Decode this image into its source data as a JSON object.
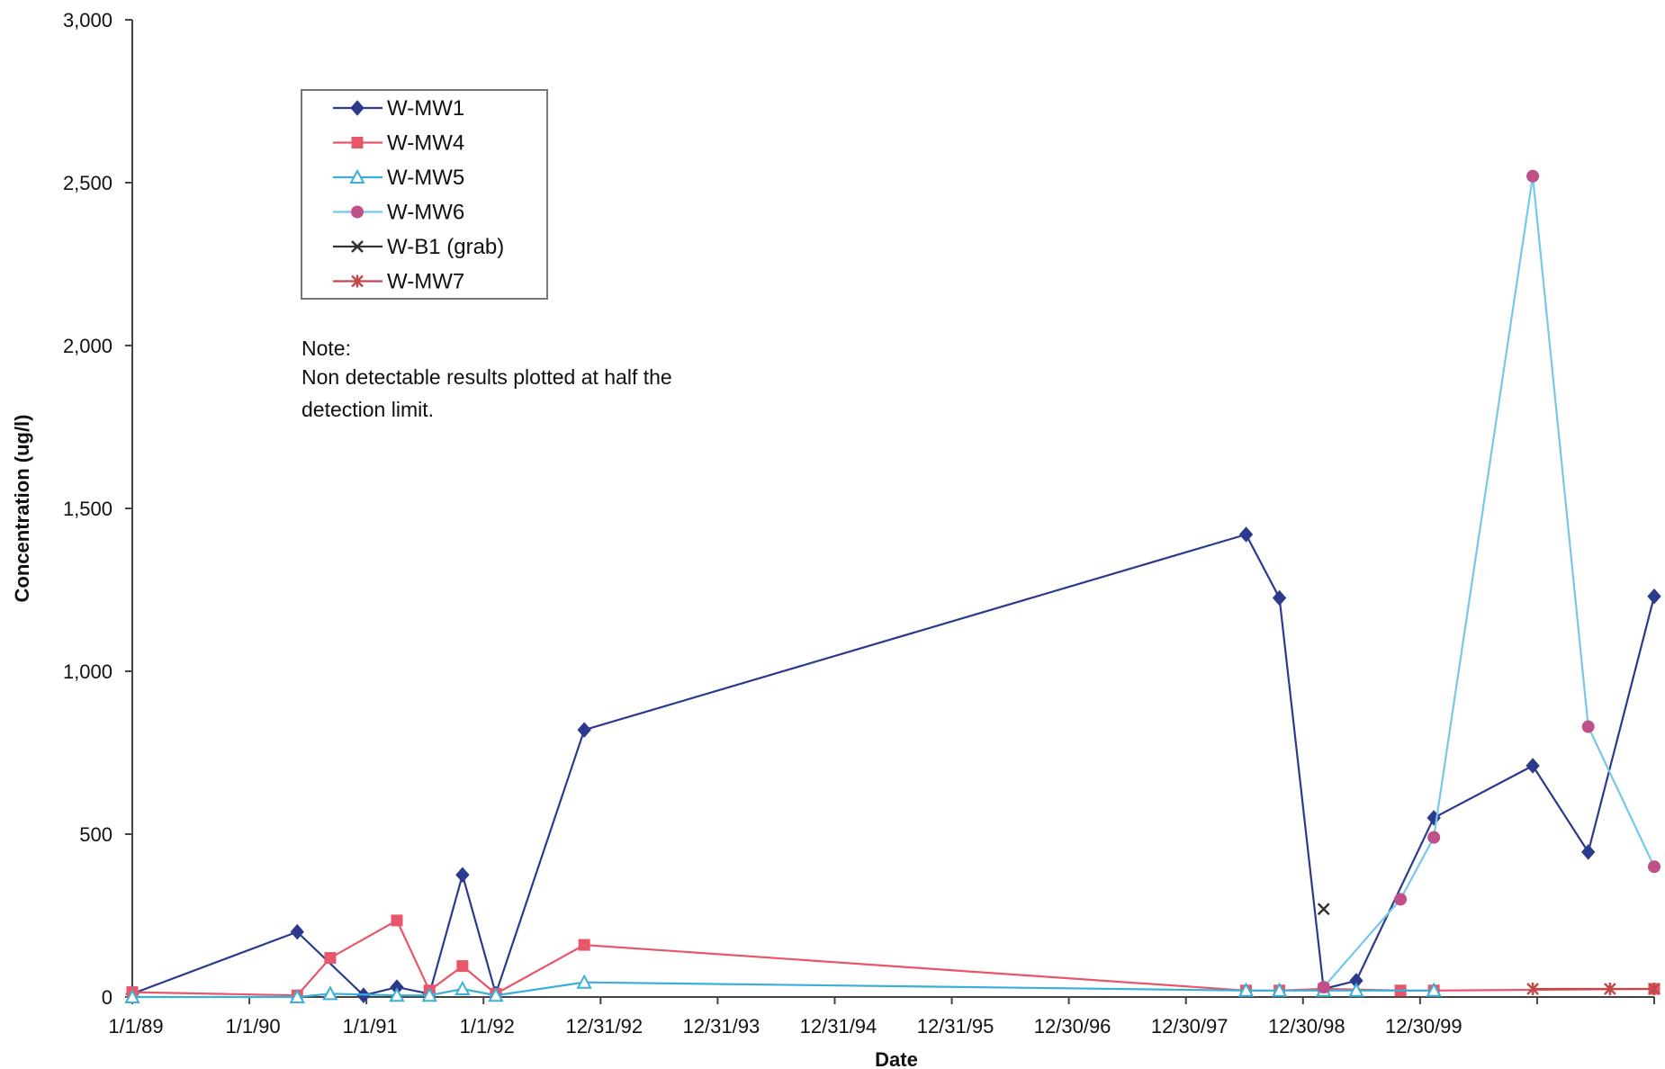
{
  "chart_data": {
    "type": "line",
    "title": "",
    "xlabel": "Date",
    "ylabel": "Concentration (ug/l)",
    "x_tick_labels": [
      "1/1/89",
      "1/1/90",
      "1/1/91",
      "1/1/92",
      "12/31/92",
      "12/31/93",
      "12/31/94",
      "12/31/95",
      "12/30/96",
      "12/30/97",
      "12/30/98",
      "12/30/99"
    ],
    "y_tick_labels": [
      "0",
      "500",
      "1,000",
      "1,500",
      "2,000",
      "2,500",
      "3,000"
    ],
    "ylim": [
      0,
      3000
    ],
    "xlim": [
      "1989-01-01",
      "2000-07-01"
    ],
    "grid": false,
    "legend_position": "top-left",
    "note": {
      "heading": "Note:",
      "lines": [
        "Non detectable results plotted at half the",
        "detection limit."
      ]
    },
    "series": [
      {
        "name": "W-MW1",
        "color": "#2b3a8c",
        "marker": "diamond",
        "points": [
          [
            "1989-01-01",
            10
          ],
          [
            "1990-04-01",
            200
          ],
          [
            "1990-10-01",
            5
          ],
          [
            "1991-01-01",
            30
          ],
          [
            "1991-04-01",
            10
          ],
          [
            "1991-07-01",
            375
          ],
          [
            "1991-10-01",
            10
          ],
          [
            "1992-06-01",
            820
          ],
          [
            "1997-06-01",
            1420
          ],
          [
            "1997-09-01",
            1225
          ],
          [
            "1998-01-01",
            25
          ],
          [
            "1998-04-01",
            50
          ],
          [
            "1998-11-01",
            550
          ],
          [
            "1999-08-01",
            710
          ],
          [
            "2000-01-01",
            445
          ],
          [
            "2000-07-01",
            1230
          ]
        ]
      },
      {
        "name": "W-MW4",
        "color": "#e8566a",
        "marker": "square",
        "points": [
          [
            "1989-01-01",
            15
          ],
          [
            "1990-04-01",
            5
          ],
          [
            "1990-07-01",
            120
          ],
          [
            "1991-01-01",
            235
          ],
          [
            "1991-04-01",
            20
          ],
          [
            "1991-07-01",
            95
          ],
          [
            "1991-10-01",
            10
          ],
          [
            "1992-06-01",
            160
          ],
          [
            "1997-06-01",
            20
          ],
          [
            "1997-09-01",
            20
          ],
          [
            "1998-01-01",
            25
          ],
          [
            "1998-08-01",
            20
          ],
          [
            "1998-11-01",
            20
          ],
          [
            "2000-07-01",
            25
          ]
        ]
      },
      {
        "name": "W-MW5",
        "color": "#3ab0d8",
        "marker": "triangle",
        "points": [
          [
            "1989-01-01",
            0
          ],
          [
            "1990-04-01",
            0
          ],
          [
            "1990-07-01",
            10
          ],
          [
            "1991-01-01",
            5
          ],
          [
            "1991-04-01",
            5
          ],
          [
            "1991-07-01",
            25
          ],
          [
            "1991-10-01",
            5
          ],
          [
            "1992-06-01",
            45
          ],
          [
            "1997-06-01",
            20
          ],
          [
            "1997-09-01",
            20
          ],
          [
            "1998-01-01",
            20
          ],
          [
            "1998-04-01",
            20
          ],
          [
            "1998-11-01",
            20
          ]
        ]
      },
      {
        "name": "W-MW6",
        "color": "#76c8ea",
        "marker_color": "#c0508a",
        "marker": "circle",
        "points": [
          [
            "1998-01-01",
            30
          ],
          [
            "1998-08-01",
            300
          ],
          [
            "1998-11-01",
            490
          ],
          [
            "1999-08-01",
            2520
          ],
          [
            "2000-01-01",
            830
          ],
          [
            "2000-07-01",
            400
          ]
        ]
      },
      {
        "name": "W-B1 (grab)",
        "color": "#333333",
        "marker": "x",
        "points": [
          [
            "1998-01-01",
            270
          ]
        ]
      },
      {
        "name": "W-MW7",
        "color": "#c04a4a",
        "marker": "star",
        "points": [
          [
            "1999-08-01",
            25
          ],
          [
            "2000-03-01",
            25
          ],
          [
            "2000-07-01",
            25
          ]
        ]
      }
    ]
  }
}
